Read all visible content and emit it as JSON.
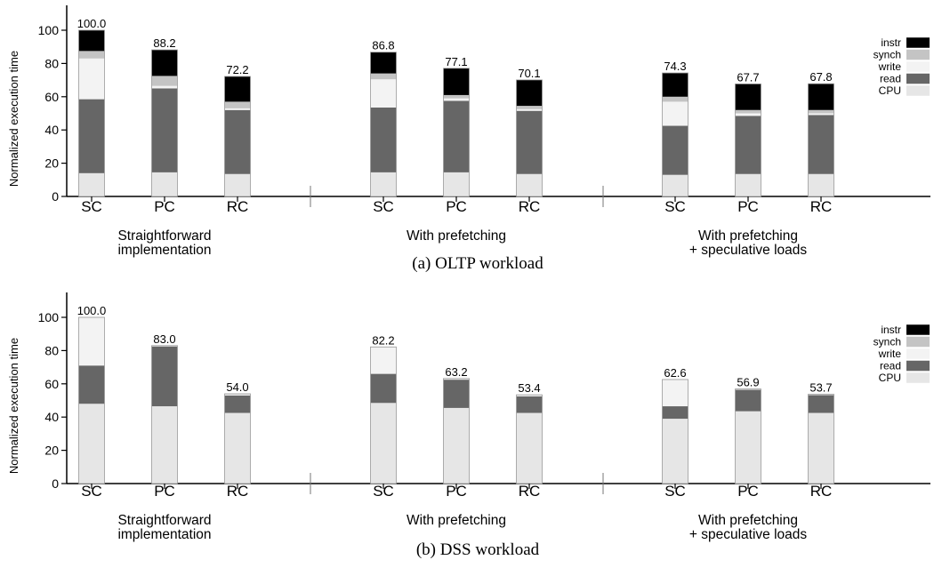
{
  "chart_data": [
    {
      "type": "bar",
      "stacked": true,
      "title": "(a) OLTP workload",
      "ylabel": "Normalized execution time",
      "ylim": [
        0,
        100
      ],
      "yticks": [
        0,
        20,
        40,
        60,
        80,
        100
      ],
      "legend_position": "top-right",
      "group_labels": [
        [
          "Straightforward",
          "implementation"
        ],
        [
          "With prefetching"
        ],
        [
          "With prefetching",
          "+ speculative loads"
        ]
      ],
      "categories": [
        "SC",
        "PC",
        "RC",
        "SC",
        "PC",
        "RC",
        "SC",
        "PC",
        "RC"
      ],
      "totals": [
        "100.0",
        "88.2",
        "72.2",
        "86.8",
        "77.1",
        "70.1",
        "74.3",
        "67.7",
        "67.8"
      ],
      "series": [
        {
          "name": "CPU",
          "values": [
            14,
            14.5,
            13.5,
            14.5,
            14.5,
            13.5,
            13,
            13.5,
            13.5
          ]
        },
        {
          "name": "read",
          "values": [
            44.5,
            50.5,
            38.5,
            39,
            43,
            38,
            29.5,
            35,
            35.5
          ]
        },
        {
          "name": "write",
          "values": [
            24.5,
            1.5,
            1,
            17,
            1.5,
            1,
            14.5,
            1.5,
            1
          ]
        },
        {
          "name": "synch",
          "values": [
            4.5,
            6,
            4,
            3.5,
            2,
            2,
            3,
            2,
            2
          ]
        },
        {
          "name": "instr",
          "values": [
            12.5,
            15.7,
            15.2,
            12.8,
            16.1,
            15.6,
            14.3,
            15.7,
            15.8
          ]
        }
      ]
    },
    {
      "type": "bar",
      "stacked": true,
      "title": "(b) DSS workload",
      "ylabel": "Normalized execution time",
      "ylim": [
        0,
        100
      ],
      "yticks": [
        0,
        20,
        40,
        60,
        80,
        100
      ],
      "legend_position": "top-right",
      "group_labels": [
        [
          "Straightforward",
          "implementation"
        ],
        [
          "With prefetching"
        ],
        [
          "With prefetching",
          "+ speculative loads"
        ]
      ],
      "categories": [
        "SC",
        "PC",
        "RC",
        "SC",
        "PC",
        "RC",
        "SC",
        "PC",
        "RC"
      ],
      "totals": [
        "100.0",
        "83.0",
        "54.0",
        "82.2",
        "63.2",
        "53.4",
        "62.6",
        "56.9",
        "53.7"
      ],
      "series": [
        {
          "name": "CPU",
          "values": [
            48,
            46.5,
            42.5,
            48.5,
            45.5,
            42.5,
            39,
            43.5,
            42.5
          ]
        },
        {
          "name": "read",
          "values": [
            23,
            36,
            10.5,
            17.5,
            17,
            10,
            7.5,
            12.9,
            10.7
          ]
        },
        {
          "name": "write",
          "values": [
            28.8,
            0.3,
            0.6,
            16,
            0.5,
            0.6,
            15.9,
            0.3,
            0.3
          ]
        },
        {
          "name": "synch",
          "values": [
            0.2,
            0.2,
            0.4,
            0.2,
            0.2,
            0.3,
            0.2,
            0.2,
            0.2
          ]
        },
        {
          "name": "instr",
          "values": [
            0,
            0,
            0,
            0,
            0,
            0,
            0,
            0,
            0
          ]
        }
      ]
    }
  ],
  "legend_items": [
    "instr",
    "synch",
    "write",
    "read",
    "CPU"
  ],
  "colors": {
    "CPU": "#e6e6e6",
    "read": "#666666",
    "write": "#f3f3f3",
    "synch": "#c4c4c4",
    "instr": "#000000",
    "bar_outline": "#9a9a9a",
    "axis": "#000000"
  }
}
